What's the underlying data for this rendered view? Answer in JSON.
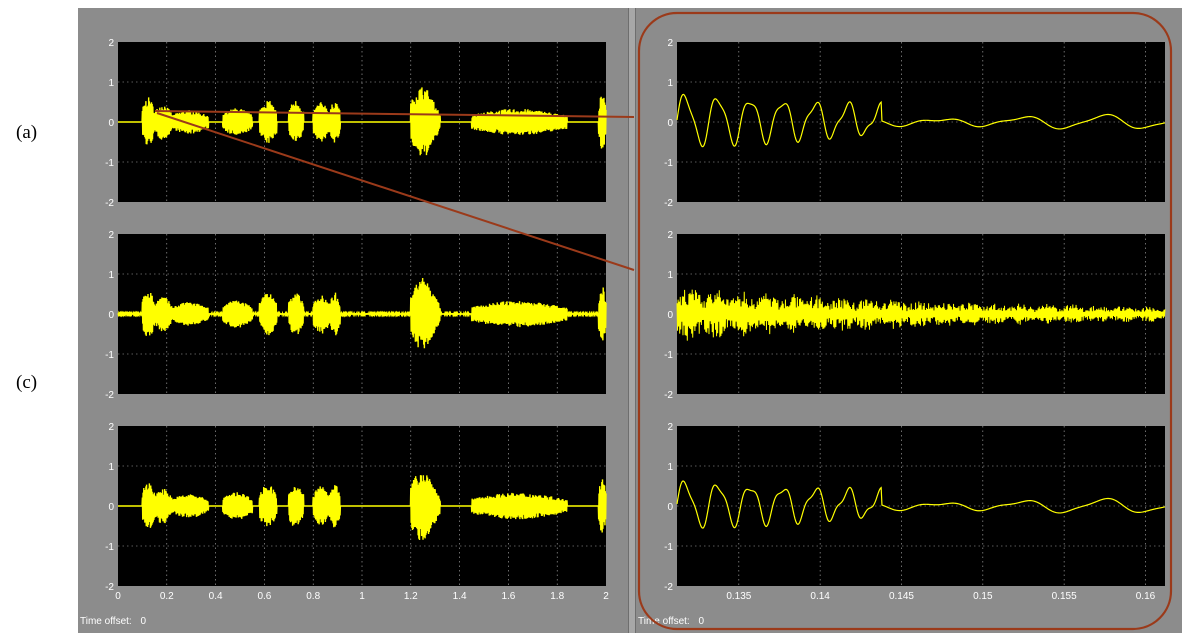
{
  "labels": {
    "row_a": "(a)",
    "row_c": "(c)"
  },
  "time_offset_label": "Time offset:",
  "time_offset_value": "0",
  "colors": {
    "plot_background": "#000000",
    "figure_background": "#8c8c8c",
    "trace": "#ffff00",
    "grid": "#ffffff",
    "zoom_highlight": "#9b3a1a"
  },
  "chart_data": [
    {
      "type": "line",
      "panel": "left-top",
      "title": "",
      "xlabel": "",
      "ylabel": "",
      "xlim": [
        0,
        2
      ],
      "ylim": [
        -2,
        2
      ],
      "yticks": [
        "2",
        "1",
        "0",
        "-1",
        "-2"
      ],
      "xticks": [],
      "grid": true,
      "series": [
        {
          "values": "speech waveform, amplitude up to about ±0.8"
        }
      ]
    },
    {
      "type": "line",
      "panel": "left-middle",
      "title": "",
      "xlabel": "",
      "ylabel": "",
      "xlim": [
        0,
        2
      ],
      "ylim": [
        -2,
        2
      ],
      "yticks": [
        "2",
        "1",
        "0",
        "-1",
        "-2"
      ],
      "xticks": [],
      "grid": true,
      "series": [
        {
          "values": "noisy speech waveform, amplitude up to about ±0.8"
        }
      ]
    },
    {
      "type": "line",
      "panel": "left-bottom",
      "title": "",
      "xlabel": "",
      "ylabel": "",
      "xlim": [
        0,
        2
      ],
      "ylim": [
        -2,
        2
      ],
      "yticks": [
        "2",
        "1",
        "0",
        "-1",
        "-2"
      ],
      "xticks": [
        "0",
        "0.2",
        "0.4",
        "0.6",
        "0.8",
        "1",
        "1.2",
        "1.4",
        "1.6",
        "1.8",
        "2"
      ],
      "grid": true,
      "series": [
        {
          "values": "recovered speech waveform, amplitude up to about ±0.8"
        }
      ]
    },
    {
      "type": "line",
      "panel": "right-top",
      "title": "",
      "xlabel": "",
      "ylabel": "",
      "xlim": [
        0.1312,
        0.1612
      ],
      "ylim": [
        -2,
        2
      ],
      "yticks": [
        "2",
        "1",
        "0",
        "-1",
        "-2"
      ],
      "xticks": [],
      "grid": true,
      "series": [
        {
          "values": "zoomed clean waveform, decaying oscillation peak about 0.6"
        }
      ]
    },
    {
      "type": "line",
      "panel": "right-middle",
      "title": "",
      "xlabel": "",
      "ylabel": "",
      "xlim": [
        0.1312,
        0.1612
      ],
      "ylim": [
        -2,
        2
      ],
      "yticks": [
        "2",
        "1",
        "0",
        "-1",
        "-2"
      ],
      "xticks": [],
      "grid": true,
      "series": [
        {
          "values": "zoomed noisy waveform, dense spikes decaying from about ±0.6"
        }
      ]
    },
    {
      "type": "line",
      "panel": "right-bottom",
      "title": "",
      "xlabel": "",
      "ylabel": "",
      "xlim": [
        0.1312,
        0.1612
      ],
      "ylim": [
        -2,
        2
      ],
      "yticks": [
        "2",
        "1",
        "0",
        "-1",
        "-2"
      ],
      "xticks": [
        "0.135",
        "0.14",
        "0.145",
        "0.15",
        "0.155",
        "0.16"
      ],
      "grid": true,
      "series": [
        {
          "values": "zoomed recovered waveform, decaying oscillation peak about 0.55"
        }
      ]
    }
  ]
}
